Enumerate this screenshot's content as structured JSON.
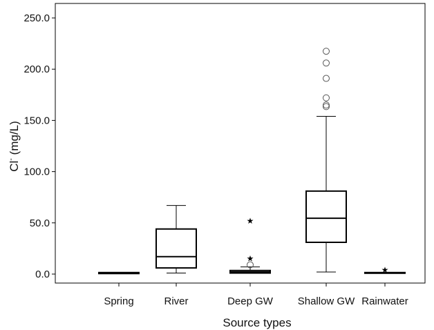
{
  "chart_data": {
    "type": "boxplot",
    "xlabel": "Source types",
    "ylabel": "Cl",
    "ylabel_superscript": "-",
    "ylabel_unit": " (mg/L)",
    "ylim": [
      0,
      250
    ],
    "yticks": [
      0,
      50,
      100,
      150,
      200,
      250
    ],
    "ytick_labels": [
      "0.0",
      "50.0",
      "100.0",
      "150.0",
      "200.0",
      "250.0"
    ],
    "grid": false,
    "categories": [
      "Spring",
      "River",
      "Deep GW",
      "Shallow GW",
      "Rainwater"
    ],
    "boxes": [
      {
        "category": "Spring",
        "whisker_low": 0.5,
        "q1": 0.5,
        "median": 1.0,
        "q3": 1.5,
        "whisker_high": 1.5,
        "outliers": [],
        "extremes": []
      },
      {
        "category": "River",
        "whisker_low": 1.0,
        "q1": 6.0,
        "median": 17.0,
        "q3": 44.0,
        "whisker_high": 67.0,
        "outliers": [],
        "extremes": []
      },
      {
        "category": "Deep GW",
        "whisker_low": 1.0,
        "q1": 1.0,
        "median": 2.0,
        "q3": 3.5,
        "whisker_high": 7.0,
        "outliers": [
          9.0
        ],
        "extremes": [
          15.0,
          52.0
        ]
      },
      {
        "category": "Shallow GW",
        "whisker_low": 2.0,
        "q1": 31.0,
        "median": 54.5,
        "q3": 81.0,
        "whisker_high": 154.0,
        "outliers": [
          163.5,
          165.0,
          172.0,
          191.0,
          206.0,
          217.5
        ],
        "extremes": []
      },
      {
        "category": "Rainwater",
        "whisker_low": 1.0,
        "q1": 1.0,
        "median": 1.0,
        "q3": 1.5,
        "whisker_high": 1.5,
        "outliers": [],
        "extremes": [
          4.0
        ]
      }
    ]
  }
}
